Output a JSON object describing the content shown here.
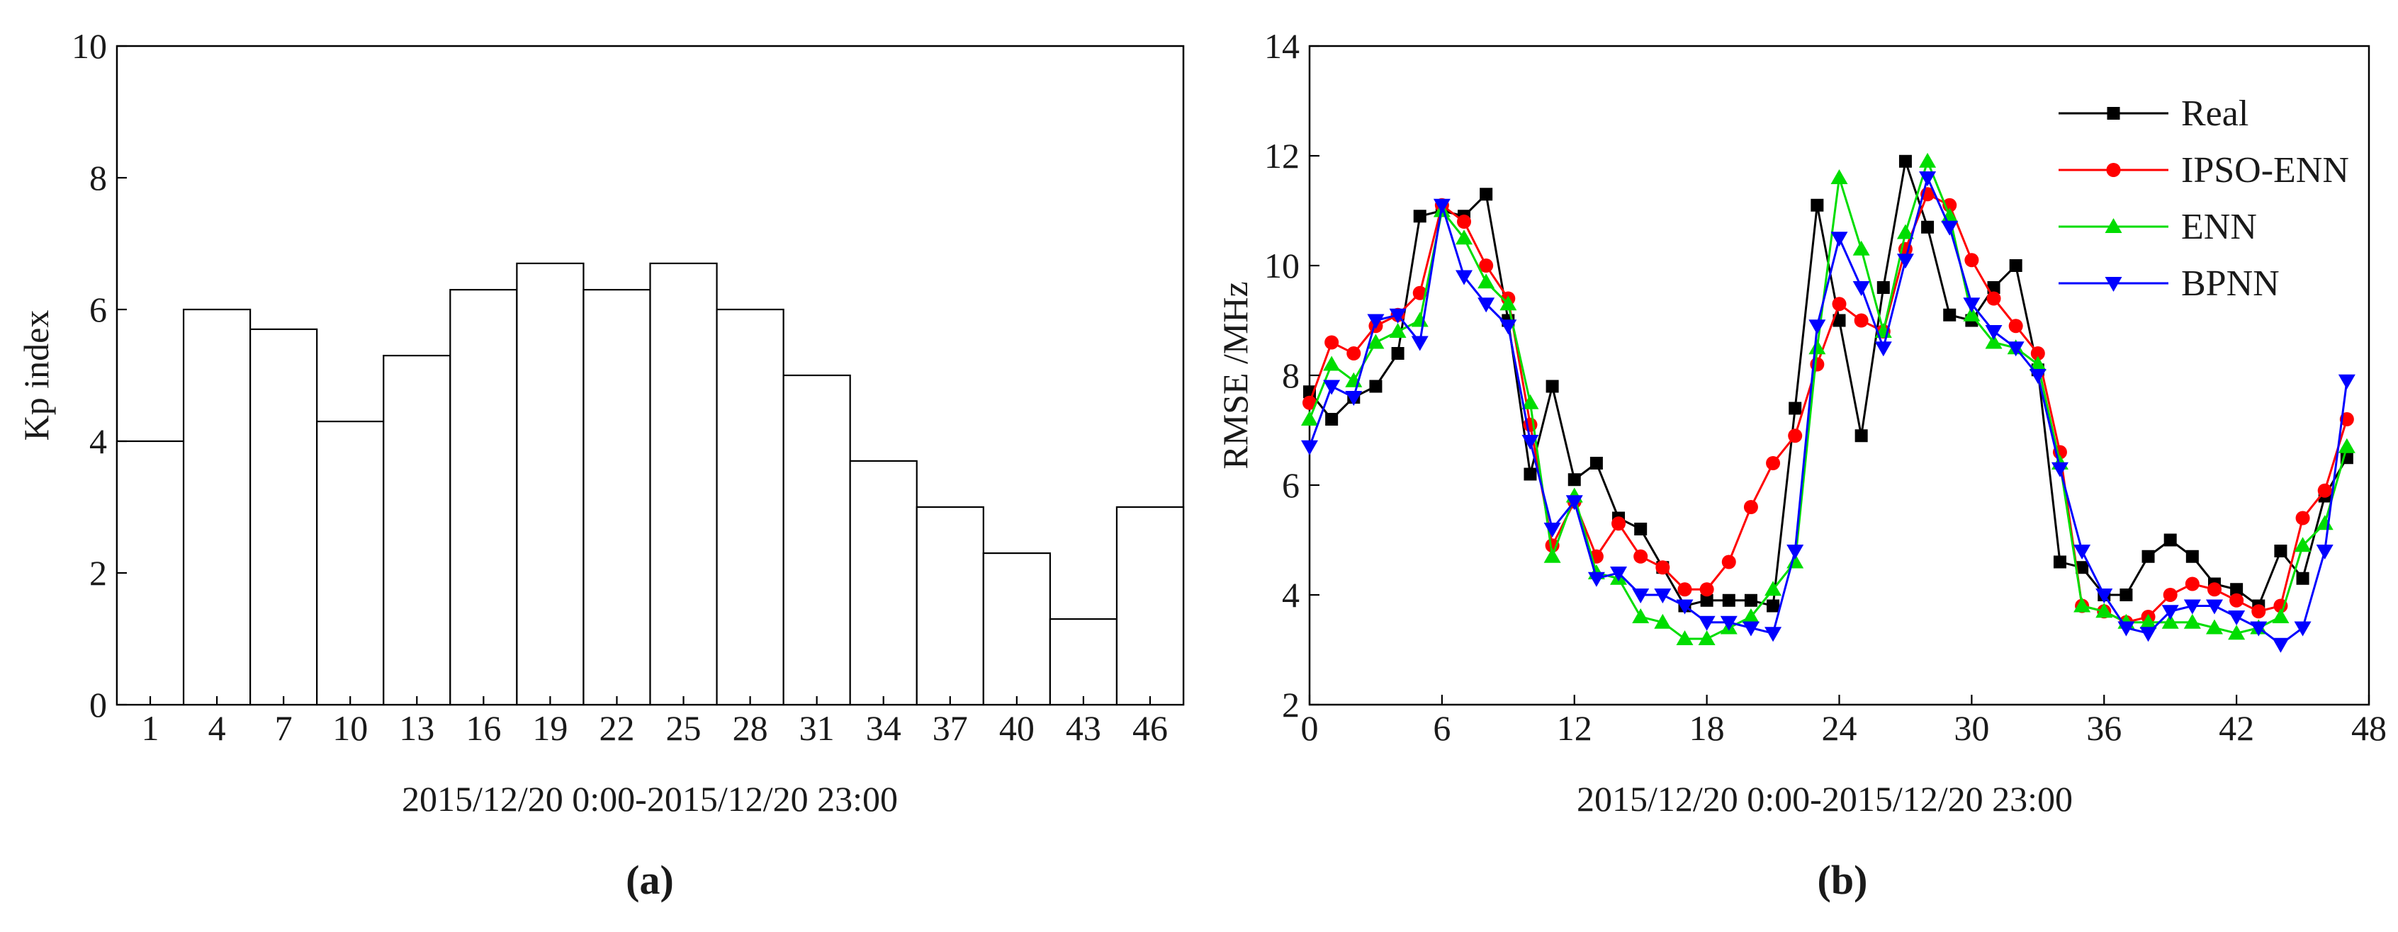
{
  "chart_data": [
    {
      "type": "bar",
      "panel_label": "(a)",
      "xlabel": "2015/12/20 0:00-2015/12/20 23:00",
      "ylabel": "Kp index",
      "ylim": [
        0,
        10
      ],
      "yticks": [
        0,
        2,
        4,
        6,
        8,
        10
      ],
      "xtick_labels": [
        "1",
        "4",
        "7",
        "10",
        "13",
        "16",
        "19",
        "22",
        "25",
        "28",
        "31",
        "34",
        "37",
        "40",
        "43",
        "46"
      ],
      "categories": [
        "1",
        "4",
        "7",
        "10",
        "13",
        "16",
        "19",
        "22",
        "25",
        "28",
        "31",
        "34",
        "37",
        "40",
        "43",
        "46"
      ],
      "values": [
        4.0,
        6.0,
        5.7,
        4.3,
        5.3,
        6.3,
        6.7,
        6.3,
        6.7,
        6.0,
        5.0,
        3.7,
        3.0,
        2.3,
        1.3,
        3.0
      ],
      "grid": false,
      "bar_color": "#ffffff",
      "edge_color": "#000000"
    },
    {
      "type": "line",
      "panel_label": "(b)",
      "xlabel": "2015/12/20 0:00-2015/12/20 23:00",
      "ylabel": "RMSE /MHz",
      "xlim": [
        0,
        48
      ],
      "ylim": [
        2,
        14
      ],
      "xticks": [
        0,
        6,
        12,
        18,
        24,
        30,
        36,
        42,
        48
      ],
      "yticks": [
        2,
        4,
        6,
        8,
        10,
        12,
        14
      ],
      "grid": false,
      "legend_position": "top-right",
      "series": [
        {
          "name": "Real",
          "color": "#000000",
          "marker": "square",
          "values": [
            7.7,
            7.2,
            7.6,
            7.8,
            8.4,
            10.9,
            11.0,
            10.9,
            11.3,
            9.0,
            6.2,
            7.8,
            6.1,
            6.4,
            5.4,
            5.2,
            4.5,
            3.8,
            3.9,
            3.9,
            3.9,
            3.8,
            7.4,
            11.1,
            9.0,
            6.9,
            9.6,
            11.9,
            10.7,
            9.1,
            9.0,
            9.6,
            10.0,
            8.1,
            4.6,
            4.5,
            4.0,
            4.0,
            4.7,
            5.0,
            4.7,
            4.2,
            4.1,
            3.8,
            4.8,
            4.3,
            5.8,
            6.5
          ]
        },
        {
          "name": "IPSO-ENN",
          "color": "#ff0000",
          "marker": "circle",
          "values": [
            7.5,
            8.6,
            8.4,
            8.9,
            9.1,
            9.5,
            11.1,
            10.8,
            10.0,
            9.4,
            7.1,
            4.9,
            5.7,
            4.7,
            5.3,
            4.7,
            4.5,
            4.1,
            4.1,
            4.6,
            5.6,
            6.4,
            6.9,
            8.2,
            9.3,
            9.0,
            8.8,
            10.3,
            11.3,
            11.1,
            10.1,
            9.4,
            8.9,
            8.4,
            6.6,
            3.8,
            3.7,
            3.5,
            3.6,
            4.0,
            4.2,
            4.1,
            3.9,
            3.7,
            3.8,
            5.4,
            5.9,
            7.2
          ]
        },
        {
          "name": "ENN",
          "color": "#00dd00",
          "marker": "triangle-up",
          "values": [
            7.2,
            8.2,
            7.9,
            8.6,
            8.8,
            9.0,
            11.0,
            10.5,
            9.7,
            9.3,
            7.5,
            4.7,
            5.8,
            4.4,
            4.3,
            3.6,
            3.5,
            3.2,
            3.2,
            3.4,
            3.6,
            4.1,
            4.6,
            8.5,
            11.6,
            10.3,
            8.8,
            10.6,
            11.9,
            10.9,
            9.1,
            8.6,
            8.5,
            8.2,
            6.4,
            3.8,
            3.7,
            3.5,
            3.5,
            3.5,
            3.5,
            3.4,
            3.3,
            3.4,
            3.6,
            4.9,
            5.3,
            6.7
          ]
        },
        {
          "name": "BPNN",
          "color": "#0000ff",
          "marker": "triangle-down",
          "values": [
            6.7,
            7.8,
            7.6,
            9.0,
            9.1,
            8.6,
            11.1,
            9.8,
            9.3,
            8.9,
            6.8,
            5.2,
            5.7,
            4.3,
            4.4,
            4.0,
            4.0,
            3.8,
            3.5,
            3.5,
            3.4,
            3.3,
            4.8,
            8.9,
            10.5,
            9.6,
            8.5,
            10.1,
            11.6,
            10.7,
            9.3,
            8.8,
            8.5,
            8.0,
            6.3,
            4.8,
            4.0,
            3.4,
            3.3,
            3.7,
            3.8,
            3.8,
            3.6,
            3.4,
            3.1,
            3.4,
            4.8,
            7.9
          ]
        }
      ]
    }
  ]
}
